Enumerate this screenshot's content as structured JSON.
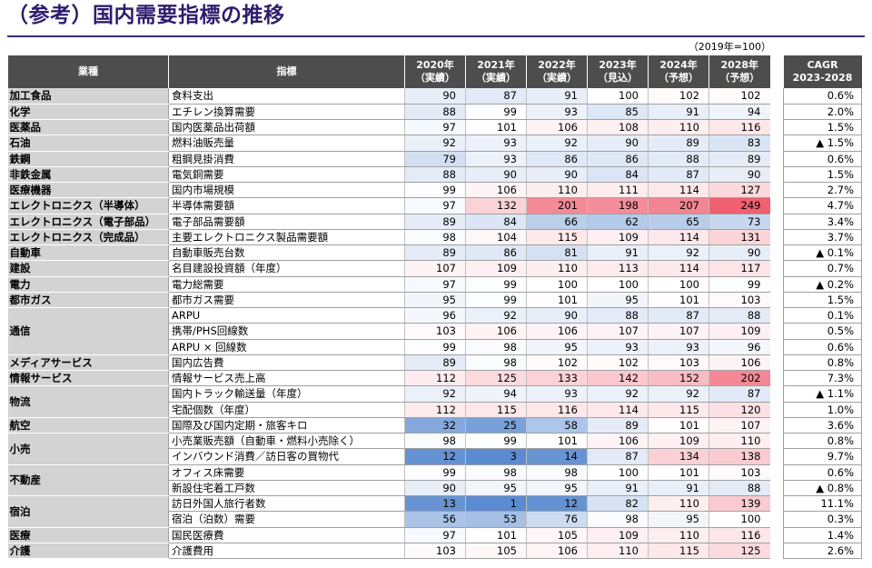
{
  "title": "（参考）国内需要指標の推移",
  "base_note": "（2019年=100）",
  "headers": {
    "industry": "業種",
    "metric": "指標",
    "years": [
      {
        "year": "2020年",
        "note": "（実績）"
      },
      {
        "year": "2021年",
        "note": "（実績）"
      },
      {
        "year": "2022年",
        "note": "（実績）"
      },
      {
        "year": "2023年",
        "note": "（見込）"
      },
      {
        "year": "2024年",
        "note": "（予想）"
      },
      {
        "year": "2028年",
        "note": "（予想）"
      }
    ],
    "cagr": "CAGR",
    "cagr_period": "2023-2028"
  },
  "rows": [
    {
      "industry": "加工食品",
      "metric": "食料支出",
      "values": [
        90,
        87,
        91,
        100,
        102,
        102
      ],
      "cagr": "0.6%"
    },
    {
      "industry": "化学",
      "metric": "エチレン換算需要",
      "values": [
        88,
        99,
        93,
        85,
        91,
        94
      ],
      "cagr": "2.0%"
    },
    {
      "industry": "医薬品",
      "metric": "国内医薬品出荷額",
      "values": [
        97,
        101,
        106,
        108,
        110,
        116
      ],
      "cagr": "1.5%"
    },
    {
      "industry": "石油",
      "metric": "燃料油販売量",
      "values": [
        92,
        93,
        92,
        90,
        89,
        83
      ],
      "cagr": "▲ 1.5%"
    },
    {
      "industry": "鉄鋼",
      "metric": "粗鋼見掛消費",
      "values": [
        79,
        93,
        86,
        86,
        88,
        89
      ],
      "cagr": "0.6%"
    },
    {
      "industry": "非鉄金属",
      "metric": "電気銅需要",
      "values": [
        88,
        90,
        90,
        84,
        87,
        90
      ],
      "cagr": "1.5%"
    },
    {
      "industry": "医療機器",
      "metric": "国内市場規模",
      "values": [
        99,
        106,
        110,
        111,
        114,
        127
      ],
      "cagr": "2.7%"
    },
    {
      "industry": "エレクトロニクス（半導体）",
      "metric": "半導体需要額",
      "values": [
        97,
        132,
        201,
        198,
        207,
        249
      ],
      "cagr": "4.7%"
    },
    {
      "industry": "エレクトロニクス（電子部品）",
      "metric": "電子部品需要額",
      "values": [
        89,
        84,
        66,
        62,
        65,
        73
      ],
      "cagr": "3.4%"
    },
    {
      "industry": "エレクトロニクス（完成品）",
      "metric": "主要エレクトロニクス製品需要額",
      "values": [
        98,
        104,
        115,
        109,
        114,
        131
      ],
      "cagr": "3.7%"
    },
    {
      "industry": "自動車",
      "metric": "自動車販売台数",
      "values": [
        89,
        86,
        81,
        91,
        92,
        90
      ],
      "cagr": "▲ 0.1%"
    },
    {
      "industry": "建設",
      "metric": "名目建設投資額（年度）",
      "values": [
        107,
        109,
        110,
        113,
        114,
        117
      ],
      "cagr": "0.7%"
    },
    {
      "industry": "電力",
      "metric": "電力総需要",
      "values": [
        97,
        99,
        100,
        100,
        100,
        99
      ],
      "cagr": "▲ 0.2%"
    },
    {
      "industry": "都市ガス",
      "metric": "都市ガス需要",
      "values": [
        95,
        99,
        101,
        95,
        101,
        103
      ],
      "cagr": "1.5%"
    },
    {
      "industry": "通信",
      "metric": "ARPU",
      "values": [
        96,
        92,
        90,
        88,
        87,
        88
      ],
      "cagr": "0.1%"
    },
    {
      "industry": "",
      "metric": "携帯/PHS回線数",
      "values": [
        103,
        106,
        106,
        107,
        107,
        109
      ],
      "cagr": "0.5%"
    },
    {
      "industry": "",
      "metric": "ARPU × 回線数",
      "values": [
        99,
        98,
        95,
        93,
        93,
        96
      ],
      "cagr": "0.6%"
    },
    {
      "industry": "メディアサービス",
      "metric": "国内広告費",
      "values": [
        89,
        98,
        102,
        102,
        103,
        106
      ],
      "cagr": "0.8%"
    },
    {
      "industry": "情報サービス",
      "metric": "情報サービス売上高",
      "values": [
        112,
        125,
        133,
        142,
        152,
        202
      ],
      "cagr": "7.3%"
    },
    {
      "industry": "物流",
      "metric": "国内トラック輸送量（年度）",
      "values": [
        92,
        94,
        93,
        92,
        92,
        87
      ],
      "cagr": "▲ 1.1%"
    },
    {
      "industry": "",
      "metric": "宅配個数（年度）",
      "values": [
        112,
        115,
        116,
        114,
        115,
        120
      ],
      "cagr": "1.0%"
    },
    {
      "industry": "航空",
      "metric": "国際及び国内定期・旅客キロ",
      "values": [
        32,
        25,
        58,
        89,
        101,
        107
      ],
      "cagr": "3.6%"
    },
    {
      "industry": "小売",
      "metric": "小売業販売額（自動車・燃料小売除く）",
      "values": [
        98,
        99,
        101,
        106,
        109,
        110
      ],
      "cagr": "0.8%"
    },
    {
      "industry": "",
      "metric": "インバウンド消費／訪日客の買物代",
      "values": [
        12,
        3,
        14,
        87,
        134,
        138
      ],
      "cagr": "9.7%"
    },
    {
      "industry": "不動産",
      "metric": "オフィス床需要",
      "values": [
        99,
        98,
        98,
        100,
        101,
        103
      ],
      "cagr": "0.6%"
    },
    {
      "industry": "",
      "metric": "新設住宅着工戸数",
      "values": [
        90,
        95,
        95,
        91,
        91,
        88
      ],
      "cagr": "▲ 0.8%"
    },
    {
      "industry": "宿泊",
      "metric": "訪日外国人旅行者数",
      "values": [
        13,
        1,
        12,
        82,
        110,
        139
      ],
      "cagr": "11.1%"
    },
    {
      "industry": "",
      "metric": "宿泊（泊数）需要",
      "values": [
        56,
        53,
        76,
        98,
        95,
        100
      ],
      "cagr": "0.3%"
    },
    {
      "industry": "医療",
      "metric": "国民医療費",
      "values": [
        97,
        101,
        105,
        109,
        110,
        116
      ],
      "cagr": "1.4%"
    },
    {
      "industry": "介護",
      "metric": "介護費用",
      "values": [
        103,
        105,
        106,
        110,
        115,
        125
      ],
      "cagr": "2.6%"
    }
  ],
  "colors": {
    "title": "#2e1d6e",
    "header_bg": "#4d4d4d",
    "industry_bg": "#d3d3d3",
    "low": "#5b8bd0",
    "high": "#f06070"
  }
}
